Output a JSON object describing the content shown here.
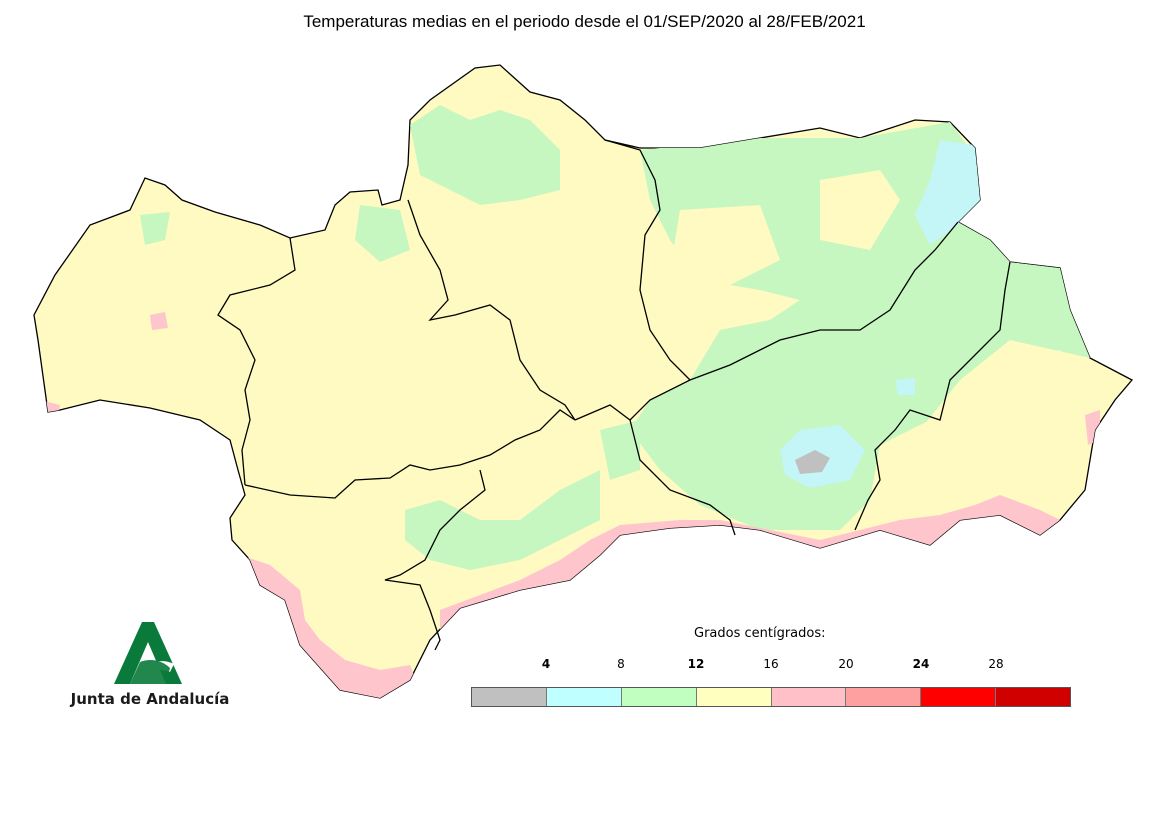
{
  "title": "Temperaturas medias en el periodo desde el 01/SEP/2020 al 28/FEB/2021",
  "logo": {
    "text": "Junta de Andalucía",
    "color": "#0a7a3a"
  },
  "legend": {
    "title": "Grados centígrados:",
    "ticks": [
      {
        "label": "4",
        "bold": true
      },
      {
        "label": "8",
        "bold": false
      },
      {
        "label": "12",
        "bold": true
      },
      {
        "label": "16",
        "bold": false
      },
      {
        "label": "20",
        "bold": false
      },
      {
        "label": "24",
        "bold": true
      },
      {
        "label": "28",
        "bold": false
      }
    ],
    "classes": [
      {
        "range": "< 4",
        "color": "#c0c0c0"
      },
      {
        "range": "4-8",
        "color": "#bfffff"
      },
      {
        "range": "8-12",
        "color": "#c0ffc0"
      },
      {
        "range": "12-16",
        "color": "#ffffc0"
      },
      {
        "range": "16-20",
        "color": "#ffc0c8"
      },
      {
        "range": "20-24",
        "color": "#ffa0a0"
      },
      {
        "range": "24-28",
        "color": "#ff0000"
      },
      {
        "range": "> 28",
        "color": "#d00000"
      }
    ]
  },
  "map_colors": {
    "base": "#fefac2",
    "green": "#c6f7c0",
    "cyan": "#c4f6f8",
    "pink": "#ffc5cc",
    "gray": "#c0c0c0",
    "border": "#000000"
  }
}
